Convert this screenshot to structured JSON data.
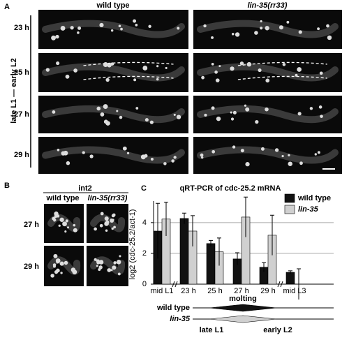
{
  "panel_a": {
    "label": "A",
    "columns": [
      "wild type",
      "lin-35(rr33)"
    ],
    "rows": [
      "23 h",
      "25 h",
      "27 h",
      "29 h"
    ],
    "side_label": "late L1 — early L2"
  },
  "panel_b": {
    "label": "B",
    "title": "int2",
    "columns": [
      "wild type",
      "lin-35(rr33)"
    ],
    "rows": [
      "27 h",
      "29 h"
    ]
  },
  "chart_data": {
    "type": "bar",
    "panel_label": "C",
    "title": "qRT-PCR of cdc-25.2 mRNA",
    "y_label": "log2 (cdc-25.2/act-1)",
    "categories": [
      "mid L1",
      "23 h",
      "25 h",
      "27 h",
      "29 h",
      "mid L3"
    ],
    "series": [
      {
        "name": "wild type",
        "color": "#111111",
        "values": [
          3.45,
          4.27,
          2.64,
          1.64,
          1.1,
          0.77
        ],
        "errors": [
          1.8,
          0.35,
          0.2,
          0.4,
          0.3,
          0.1
        ]
      },
      {
        "name": "lin-35",
        "color": "#d0d0d0",
        "values": [
          4.23,
          3.45,
          2.1,
          4.36,
          3.18,
          0
        ],
        "errors": [
          1.1,
          1.0,
          0.9,
          1.3,
          1.3,
          1.0
        ]
      }
    ],
    "ylim": [
      0,
      5.4
    ],
    "yticks": [
      0,
      2,
      4
    ],
    "grid": true,
    "timeline": {
      "label": "molting",
      "rows": [
        "wild type",
        "lin-35"
      ],
      "stages": [
        "late L1",
        "early L2"
      ]
    }
  }
}
